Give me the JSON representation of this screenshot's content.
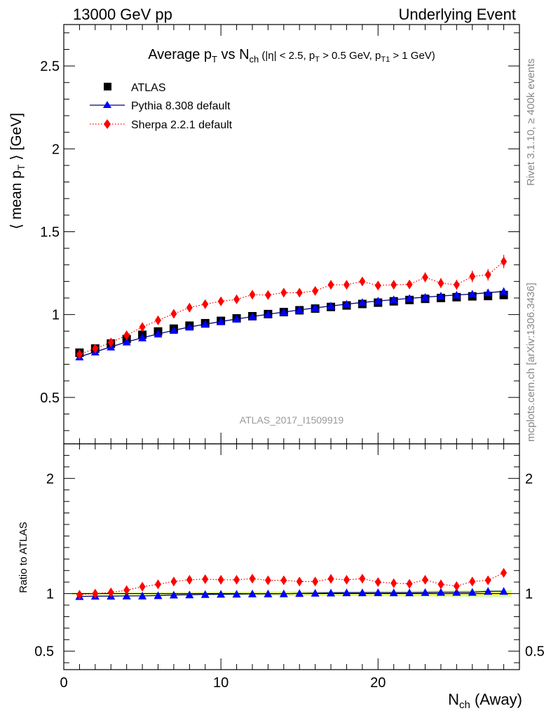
{
  "header": {
    "left": "13000 GeV pp",
    "right": "Underlying Event"
  },
  "side_labels": {
    "rivet": "Rivet 3.1.10, ≥ 400k events",
    "mcplots": "mcplots.cern.ch [arXiv:1306.3436]"
  },
  "watermark": "ATLAS_2017_I1509919",
  "title": {
    "prefix": "Average p",
    "sub1": "T",
    "mid": " vs N",
    "sub2": "ch",
    "cuts_a": " (|η| < 2.5, p",
    "sub3": "T",
    "cuts_b": " > 0.5 GeV, p",
    "sub4": "T1",
    "cuts_c": " > 1 GeV)"
  },
  "ylabel_main": {
    "prefix": "⟨ mean p",
    "sub": "T",
    "suffix": " ⟩ [GeV]"
  },
  "ylabel_ratio": "Ratio to ATLAS",
  "xlabel": {
    "main": "N",
    "sub": "ch",
    "suffix": " (Away)"
  },
  "colors": {
    "atlas": "#000000",
    "pythia": "#0000ff",
    "pythia_line": "#000080",
    "sherpa": "#ff0000",
    "band_inner": "#ffff66",
    "band_outer": "#ccff99"
  },
  "chart_data": [
    {
      "type": "scatter",
      "panel": "main",
      "xlabel": "N_ch (Away)",
      "ylabel": "⟨ mean p_T ⟩ [GeV]",
      "xlim": [
        0,
        29
      ],
      "ylim": [
        0.22,
        2.75
      ],
      "y_ticks": [
        "0.5",
        "1",
        "1.5",
        "2",
        "2.5"
      ],
      "y_tick_values": [
        0.5,
        1,
        1.5,
        2,
        2.5
      ],
      "legend_position": "top-left",
      "x": [
        1,
        2,
        3,
        4,
        5,
        6,
        7,
        8,
        9,
        10,
        11,
        12,
        13,
        14,
        15,
        16,
        17,
        18,
        19,
        20,
        21,
        22,
        23,
        24,
        25,
        26,
        27,
        28
      ],
      "series": [
        {
          "name": "ATLAS",
          "style": "square-markers",
          "values": [
            0.77,
            0.795,
            0.825,
            0.852,
            0.878,
            0.898,
            0.915,
            0.933,
            0.948,
            0.962,
            0.977,
            0.99,
            1.003,
            1.015,
            1.026,
            1.036,
            1.046,
            1.055,
            1.064,
            1.072,
            1.08,
            1.088,
            1.095,
            1.1,
            1.105,
            1.11,
            1.112,
            1.118
          ]
        },
        {
          "name": "Pythia 8.308 default",
          "style": "solid-line-triangles",
          "values": [
            0.745,
            0.775,
            0.805,
            0.835,
            0.86,
            0.883,
            0.905,
            0.925,
            0.942,
            0.958,
            0.973,
            0.988,
            1.002,
            1.015,
            1.028,
            1.04,
            1.052,
            1.063,
            1.073,
            1.082,
            1.09,
            1.098,
            1.105,
            1.112,
            1.118,
            1.124,
            1.132,
            1.14
          ]
        },
        {
          "name": "Sherpa 2.2.1 default",
          "style": "dotted-line-diamonds",
          "values": [
            0.76,
            0.795,
            0.832,
            0.875,
            0.925,
            0.965,
            1.005,
            1.042,
            1.063,
            1.08,
            1.092,
            1.12,
            1.118,
            1.132,
            1.132,
            1.143,
            1.18,
            1.18,
            1.2,
            1.175,
            1.18,
            1.182,
            1.225,
            1.19,
            1.18,
            1.23,
            1.24,
            1.32
          ],
          "errors": [
            0.01,
            0.01,
            0.01,
            0.01,
            0.01,
            0.01,
            0.01,
            0.012,
            0.012,
            0.012,
            0.014,
            0.014,
            0.015,
            0.016,
            0.017,
            0.018,
            0.02,
            0.02,
            0.022,
            0.022,
            0.024,
            0.025,
            0.03,
            0.03,
            0.03,
            0.035,
            0.035,
            0.04
          ]
        }
      ]
    },
    {
      "type": "scatter",
      "panel": "ratio",
      "ylabel": "Ratio to ATLAS",
      "xlabel": "N_ch (Away)",
      "xlim": [
        0,
        29
      ],
      "ylim": [
        0.34,
        2.3
      ],
      "x_ticks": [
        "0",
        "10",
        "20"
      ],
      "x_tick_values": [
        0,
        10,
        20
      ],
      "y_ticks": [
        "0.5",
        "1",
        "2"
      ],
      "y_tick_values": [
        0.5,
        1,
        2
      ],
      "x": [
        1,
        2,
        3,
        4,
        5,
        6,
        7,
        8,
        9,
        10,
        11,
        12,
        13,
        14,
        15,
        16,
        17,
        18,
        19,
        20,
        21,
        22,
        23,
        24,
        25,
        26,
        27,
        28
      ],
      "series": [
        {
          "name": "Pythia 8.308 default",
          "values": [
            0.975,
            0.978,
            0.978,
            0.98,
            0.98,
            0.983,
            0.988,
            0.99,
            0.993,
            0.995,
            0.996,
            0.998,
            0.998,
            0.999,
            1.002,
            1.004,
            1.006,
            1.008,
            1.008,
            1.009,
            1.008,
            1.008,
            1.01,
            1.012,
            1.012,
            1.012,
            1.02,
            1.02
          ]
        },
        {
          "name": "Sherpa 2.2.1 default",
          "values": [
            0.99,
            1.0,
            1.01,
            1.03,
            1.06,
            1.08,
            1.105,
            1.12,
            1.125,
            1.12,
            1.12,
            1.13,
            1.115,
            1.115,
            1.105,
            1.105,
            1.128,
            1.12,
            1.13,
            1.1,
            1.09,
            1.085,
            1.12,
            1.08,
            1.065,
            1.105,
            1.115,
            1.18
          ],
          "errors": [
            0.012,
            0.012,
            0.012,
            0.012,
            0.012,
            0.012,
            0.012,
            0.014,
            0.014,
            0.014,
            0.016,
            0.016,
            0.016,
            0.018,
            0.018,
            0.02,
            0.02,
            0.02,
            0.022,
            0.022,
            0.024,
            0.024,
            0.028,
            0.028,
            0.03,
            0.032,
            0.034,
            0.036
          ]
        }
      ]
    }
  ]
}
